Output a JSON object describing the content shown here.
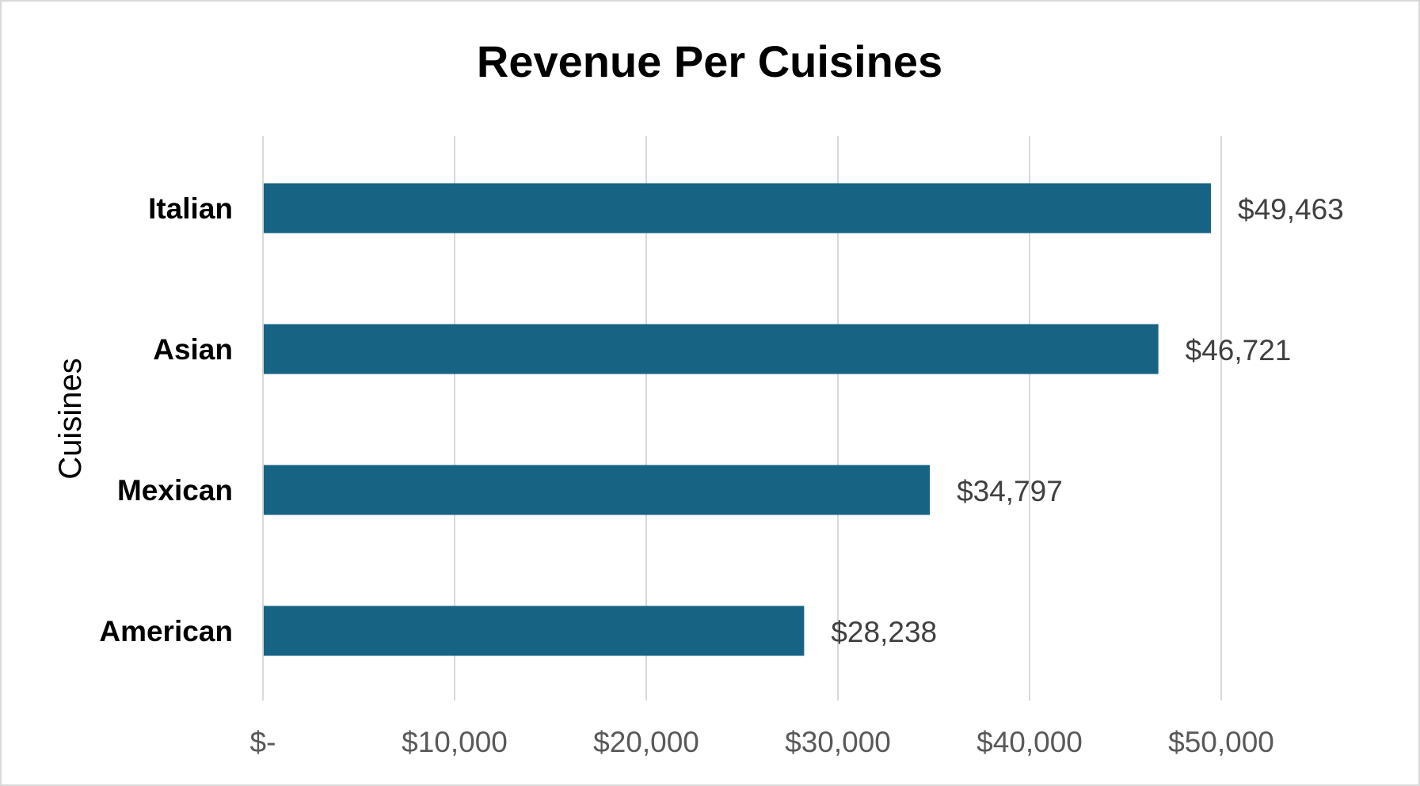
{
  "chart_data": {
    "type": "bar",
    "orientation": "horizontal",
    "title": "Revenue Per Cuisines",
    "xlabel": "",
    "ylabel": "Cuisines",
    "categories": [
      "Italian",
      "Asian",
      "Mexican",
      "American"
    ],
    "values": [
      49463,
      46721,
      34797,
      28238
    ],
    "value_labels": [
      "$49,463",
      "$46,721",
      "$34,797",
      "$28,238"
    ],
    "xlim": [
      0,
      50000
    ],
    "x_ticks": [
      0,
      10000,
      20000,
      30000,
      40000,
      50000
    ],
    "x_tick_labels": [
      "$-",
      "$10,000",
      "$20,000",
      "$30,000",
      "$40,000",
      "$50,000"
    ],
    "grid": true,
    "legend": "none",
    "colors": {
      "bar": "#176384",
      "grid": "#d9d9d9",
      "tick_label": "#595959",
      "value_label": "#404040"
    }
  }
}
